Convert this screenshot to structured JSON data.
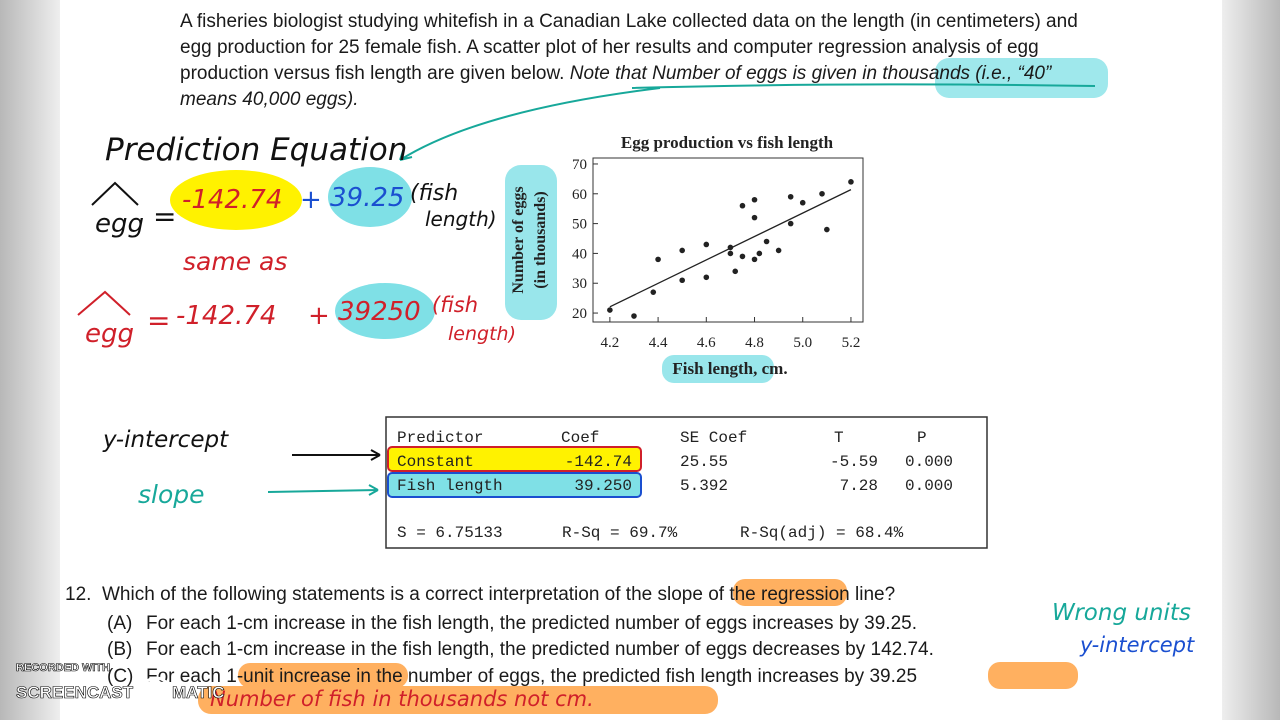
{
  "intro": [
    [
      "A fisheries biologist studying whitefish in a Canadian Lake collected data on the length (in centimeters) and"
    ],
    [
      "egg production for 25 female fish. A scatter plot of her results and computer regression analysis of egg"
    ],
    [
      "production versus fish length are given below. ",
      "Note that Number of eggs is given in thousands (i.e., “40”"
    ],
    [
      "means 40,000 eggs)."
    ]
  ],
  "annotations": {
    "prediction_title": "Prediction Equation",
    "eq1": {
      "lhs": "egg",
      "eq": "=",
      "intercept": "-142.74",
      "plus": "+",
      "slope": "39.25",
      "var1": "(fish",
      "var2": "length)"
    },
    "same_as": "same as",
    "eq2": {
      "lhs": "egg",
      "eq": "=",
      "intercept": "-142.74",
      "plus": "+",
      "slope": "39250",
      "var1": "(fish",
      "var2": "length)"
    },
    "y_intercept_label": "y-intercept",
    "slope_label": "slope",
    "wrong_units": "Wrong units",
    "y_intercept_note": "y-intercept",
    "fish_note": "Number of fish in thousands not cm."
  },
  "chart_data": {
    "type": "scatter",
    "title": "Egg production vs fish length",
    "xlabel": "Fish length, cm.",
    "ylabel": [
      "Number of eggs",
      "(in thousands)"
    ],
    "x": [
      4.2,
      4.3,
      4.38,
      4.4,
      4.5,
      4.5,
      4.6,
      4.6,
      4.7,
      4.7,
      4.72,
      4.75,
      4.75,
      4.8,
      4.8,
      4.8,
      4.82,
      4.85,
      4.9,
      4.95,
      4.95,
      5.0,
      5.08,
      5.1,
      5.2
    ],
    "values": [
      21,
      19,
      27,
      38,
      41,
      31,
      43,
      32,
      42,
      40,
      34,
      56,
      39,
      58,
      52,
      38,
      40,
      44,
      41,
      59,
      50,
      57,
      60,
      48,
      64
    ],
    "color": "#222222",
    "fit_line": {
      "x": [
        4.2,
        5.2
      ],
      "y": [
        22.1,
        61.4
      ]
    },
    "xlim": [
      4.13,
      5.25
    ],
    "ylim": [
      17,
      72
    ],
    "xticks": [
      4.2,
      4.4,
      4.6,
      4.8,
      {
        "value": 5,
        "label": "5.0"
      },
      5.2
    ],
    "yticks": [
      20,
      30,
      40,
      50,
      60,
      70
    ]
  },
  "regression": {
    "header": [
      "Predictor",
      "Coef",
      "SE Coef",
      "T",
      "P"
    ],
    "rows": [
      [
        "Constant",
        "-142.74",
        "25.55",
        "-5.59",
        "0.000"
      ],
      [
        "Fish length",
        "39.250",
        "5.392",
        "7.28",
        "0.000"
      ]
    ],
    "summary": [
      "S = 6.75133",
      "R-Sq = 69.7%",
      "R-Sq(adj) = 68.4%"
    ]
  },
  "question": {
    "number": "12.",
    "text": "Which of the following statements is a correct interpretation of the slope of the regression line?",
    "options": [
      {
        "letter": "(A)",
        "text": "For each 1-cm increase in the fish length, the predicted number of eggs increases by 39.25."
      },
      {
        "letter": "(B)",
        "text": "For each 1-cm increase in the fish length, the predicted number of eggs decreases by 142.74."
      },
      {
        "letter": "(C)",
        "text": "For each 1-unit increase in the number of eggs, the predicted fish length increases by 39.25"
      }
    ]
  },
  "watermark": {
    "line1": "RECORDED WITH",
    "left": "SCREENCAST",
    "right": "MATIC"
  }
}
